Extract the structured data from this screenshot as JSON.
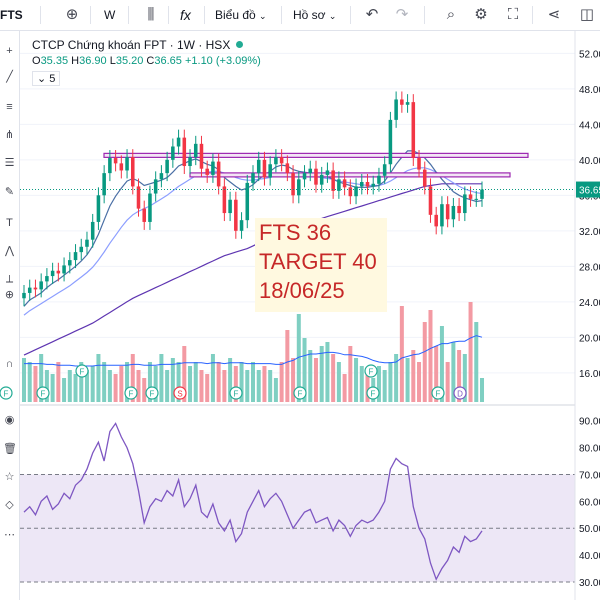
{
  "toolbar": {
    "symbol": "FTS",
    "interval": "W",
    "indicators_label": "fx",
    "chart_label": "Biểu đồ",
    "profile_label": "Hồ sơ"
  },
  "legend": {
    "title": "CTCP Chứng khoán FPT · 1W · HSX",
    "o_label": "O",
    "o": "35.35",
    "h_label": "H",
    "h": "36.90",
    "l_label": "L",
    "l": "35.20",
    "c_label": "C",
    "c": "36.65",
    "change": "+1.10 (+3.09%)",
    "indicator_toggle": "5"
  },
  "note": {
    "line1": "FTS 36",
    "line2": "TARGET 40",
    "line3": "18/06/25"
  },
  "price_label": "36.65",
  "colors": {
    "up": "#089981",
    "down": "#f23645",
    "rsi": "#7e57c2",
    "rsi_band": "#ede7f6",
    "resistance": "#9c27b0"
  },
  "chart_data": [
    {
      "type": "candlestick",
      "title": "CTCP Chứng khoán FPT · 1W · HSX",
      "y_ticks": [
        16,
        20,
        24,
        28,
        32,
        36,
        40,
        44,
        48,
        52
      ],
      "y_tick_labels": [
        "16.00",
        "20.00",
        "24.00",
        "28.00",
        "32.00",
        "36.00",
        "40.00",
        "44.00",
        "48.00",
        "52.00"
      ],
      "ylim": [
        13.5,
        53.5
      ],
      "last_price": 36.65,
      "resistance_levels": [
        40.5,
        38.3
      ],
      "close": [
        25,
        25.6,
        25.4,
        26.3,
        26.9,
        27.5,
        27.2,
        28.1,
        28.7,
        29.6,
        30.2,
        31,
        33,
        36,
        38.5,
        40.2,
        39.6,
        38.8,
        40.3,
        37,
        34.5,
        33,
        36.2,
        37.8,
        38.5,
        40,
        41.5,
        42.5,
        39.3,
        40.3,
        41.8,
        39,
        38.3,
        39.8,
        37,
        34,
        35.5,
        32,
        33.2,
        37.4,
        38.5,
        40,
        38,
        39.5,
        40.3,
        39.6,
        38.5,
        36,
        37.8,
        38.5,
        39,
        37.2,
        38.3,
        38.8,
        36.5,
        37.8,
        36.9,
        35.9,
        37,
        37.5,
        37,
        37.3,
        38.2,
        39.5,
        44.5,
        46.8,
        46.2,
        46.5,
        40.2,
        38.9,
        37,
        33.8,
        32.5,
        35,
        33.3,
        34.8,
        34,
        36.1,
        35.6,
        35.6,
        36.65
      ],
      "ma_fast": [
        23.5,
        24.2,
        24.6,
        25,
        25.6,
        26.1,
        26.5,
        27,
        27.5,
        28,
        28.6,
        29.3,
        30.3,
        31.6,
        33.2,
        34.8,
        35.9,
        36.8,
        37.6,
        37.9,
        37.6,
        37.1,
        37.3,
        37.5,
        37.7,
        38,
        38.6,
        39.3,
        39.6,
        39.9,
        40.1,
        39.8,
        39.5,
        39.3,
        38.9,
        38,
        37.5,
        37,
        36.6,
        36.8,
        37.2,
        37.8,
        38.3,
        38.7,
        39.2,
        39.4,
        39.3,
        38.9,
        38.7,
        38.6,
        38.5,
        38.3,
        38.2,
        38.1,
        37.8,
        37.5,
        37.3,
        37.1,
        36.9,
        36.9,
        36.9,
        37,
        37.1,
        37.6,
        38.5,
        39.5,
        40.3,
        41,
        41,
        40.7,
        40.2,
        39.5,
        38.6,
        37.8,
        37.1,
        36.4,
        36,
        35.7,
        35.5,
        35.3,
        35.4
      ],
      "ma_mid": [
        22.5,
        23,
        23.4,
        23.8,
        24.2,
        24.6,
        25,
        25.4,
        25.8,
        26.3,
        26.8,
        27.3,
        27.9,
        28.7,
        29.6,
        30.6,
        31.5,
        32.4,
        33.2,
        33.8,
        34.2,
        34.5,
        34.8,
        35.2,
        35.6,
        36,
        36.5,
        37,
        37.4,
        37.8,
        38.2,
        38.4,
        38.6,
        38.7,
        38.7,
        38.5,
        38.3,
        38,
        37.8,
        37.7,
        37.7,
        37.8,
        37.9,
        38,
        38.2,
        38.3,
        38.4,
        38.3,
        38.2,
        38.2,
        38.2,
        38.1,
        38,
        37.9,
        37.8,
        37.6,
        37.5,
        37.4,
        37.3,
        37.2,
        37.1,
        37.1,
        37.1,
        37.3,
        37.6,
        38,
        38.4,
        38.8,
        39,
        39.1,
        39.1,
        38.9,
        38.6,
        38.2,
        37.8,
        37.4,
        37,
        36.7,
        36.5,
        36.3,
        36.2
      ],
      "ma_slow": [
        18,
        18.3,
        18.6,
        18.9,
        19.2,
        19.5,
        19.8,
        20.1,
        20.4,
        20.7,
        21,
        21.3,
        21.6,
        22,
        22.4,
        22.8,
        23.2,
        23.6,
        24,
        24.4,
        24.7,
        25,
        25.3,
        25.6,
        25.9,
        26.2,
        26.5,
        26.8,
        27.1,
        27.4,
        27.7,
        28,
        28.3,
        28.6,
        28.9,
        29.2,
        29.4,
        29.6,
        29.8,
        30,
        30.3,
        30.6,
        30.9,
        31.2,
        31.5,
        31.8,
        32.1,
        32.4,
        32.6,
        32.8,
        33,
        33.2,
        33.4,
        33.6,
        33.8,
        34,
        34.2,
        34.4,
        34.6,
        34.8,
        35,
        35.2,
        35.4,
        35.6,
        35.8,
        36,
        36.2,
        36.4,
        36.6,
        36.8,
        37,
        37.1,
        37.2,
        37.3,
        37.3,
        37.3,
        37.3,
        37.3,
        37.3,
        37.3,
        37.3
      ]
    },
    {
      "type": "bar",
      "series_name": "volume",
      "values": [
        0.55,
        0.5,
        0.45,
        0.6,
        0.4,
        0.35,
        0.5,
        0.3,
        0.4,
        0.35,
        0.5,
        0.4,
        0.45,
        0.6,
        0.5,
        0.4,
        0.35,
        0.45,
        0.5,
        0.6,
        0.4,
        0.3,
        0.5,
        0.45,
        0.6,
        0.4,
        0.55,
        0.5,
        0.7,
        0.45,
        0.5,
        0.4,
        0.35,
        0.6,
        0.5,
        0.4,
        0.55,
        0.45,
        0.5,
        0.4,
        0.5,
        0.4,
        0.45,
        0.4,
        0.3,
        0.5,
        0.9,
        0.55,
        1.1,
        0.8,
        0.65,
        0.55,
        0.7,
        0.75,
        0.6,
        0.5,
        0.35,
        0.7,
        0.55,
        0.45,
        0.4,
        0.3,
        0.45,
        0.4,
        0.5,
        0.6,
        1.2,
        0.55,
        0.65,
        0.5,
        1.0,
        1.15,
        0.7,
        0.95,
        0.5,
        0.75,
        0.65,
        0.6,
        1.25,
        1.0,
        0.3
      ],
      "volume_ma": [
        0.48,
        0.48,
        0.48,
        0.48,
        0.47,
        0.47,
        0.46,
        0.46,
        0.46,
        0.45,
        0.45,
        0.45,
        0.45,
        0.46,
        0.46,
        0.46,
        0.46,
        0.46,
        0.46,
        0.47,
        0.47,
        0.46,
        0.46,
        0.46,
        0.47,
        0.47,
        0.47,
        0.48,
        0.49,
        0.49,
        0.49,
        0.49,
        0.48,
        0.49,
        0.49,
        0.48,
        0.49,
        0.49,
        0.49,
        0.48,
        0.48,
        0.48,
        0.48,
        0.48,
        0.47,
        0.47,
        0.5,
        0.52,
        0.56,
        0.58,
        0.6,
        0.6,
        0.61,
        0.62,
        0.62,
        0.61,
        0.59,
        0.59,
        0.58,
        0.57,
        0.55,
        0.52,
        0.5,
        0.49,
        0.49,
        0.5,
        0.55,
        0.57,
        0.59,
        0.6,
        0.63,
        0.67,
        0.7,
        0.73,
        0.73,
        0.75,
        0.76,
        0.76,
        0.8,
        0.83,
        0.81
      ]
    },
    {
      "type": "line",
      "series_name": "RSI",
      "y_ticks": [
        30,
        40,
        50,
        60,
        70,
        80,
        90
      ],
      "y_tick_labels": [
        "30.00",
        "40.00",
        "50.00",
        "60.00",
        "70.00",
        "80.00",
        "90.00"
      ],
      "ylim": [
        27,
        94
      ],
      "band": [
        30,
        70
      ],
      "midline": 50,
      "values": [
        56,
        58,
        55,
        60,
        62,
        57,
        59,
        63,
        61,
        66,
        68,
        72,
        78,
        82,
        75,
        86,
        89,
        84,
        80,
        74,
        64,
        52,
        58,
        61,
        60,
        64,
        62,
        68,
        58,
        61,
        66,
        56,
        54,
        59,
        52,
        49,
        53,
        45,
        48,
        56,
        60,
        64,
        58,
        61,
        63,
        60,
        55,
        50,
        53,
        56,
        57,
        52,
        53,
        54,
        49,
        53,
        51,
        47,
        51,
        53,
        52,
        53,
        56,
        60,
        72,
        76,
        74,
        73,
        58,
        50,
        46,
        37,
        31,
        35,
        38,
        43,
        41,
        47,
        45,
        46,
        49
      ]
    }
  ]
}
